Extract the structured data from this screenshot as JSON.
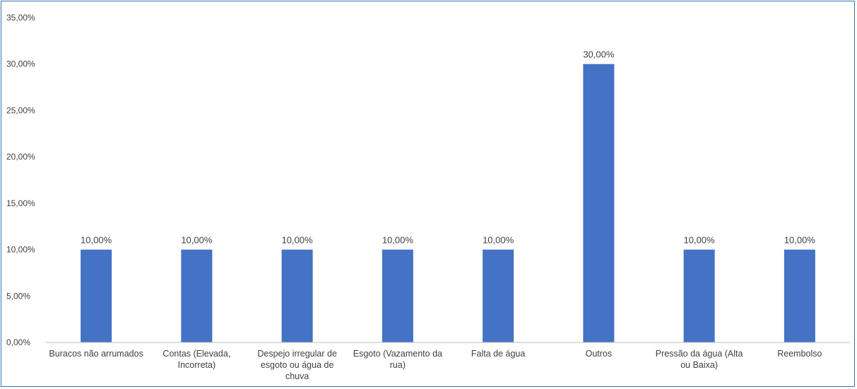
{
  "chart_data": {
    "type": "bar",
    "categories": [
      "Buracos não arrumados",
      "Contas (Elevada, Incorreta)",
      "Despejo irregular de esgoto ou água de chuva",
      "Esgoto (Vazamento da rua)",
      "Falta de água",
      "Outros",
      "Pressão da água (Alta ou Baixa)",
      "Reembolso"
    ],
    "category_label_lines": [
      [
        "Buracos não arrumados"
      ],
      [
        "Contas (Elevada,",
        "Incorreta)"
      ],
      [
        "Despejo irregular de",
        "esgoto ou água de",
        "chuva"
      ],
      [
        "Esgoto (Vazamento da",
        "rua)"
      ],
      [
        "Falta de água"
      ],
      [
        "Outros"
      ],
      [
        "Pressão da água (Alta",
        "ou Baixa)"
      ],
      [
        "Reembolso"
      ]
    ],
    "values": [
      10,
      10,
      10,
      10,
      10,
      30,
      10,
      10
    ],
    "data_labels": [
      "10,00%",
      "10,00%",
      "10,00%",
      "10,00%",
      "10,00%",
      "30,00%",
      "10,00%",
      "10,00%"
    ],
    "ylim": [
      0,
      35
    ],
    "yticks": [
      0,
      5,
      10,
      15,
      20,
      25,
      30,
      35
    ],
    "ytick_labels": [
      "0,00%",
      "5,00%",
      "10,00%",
      "15,00%",
      "20,00%",
      "25,00%",
      "30,00%",
      "35,00%"
    ],
    "bar_color": "#4472c4",
    "axis_color": "#bfbfbf",
    "grid": false,
    "legend": "none"
  }
}
